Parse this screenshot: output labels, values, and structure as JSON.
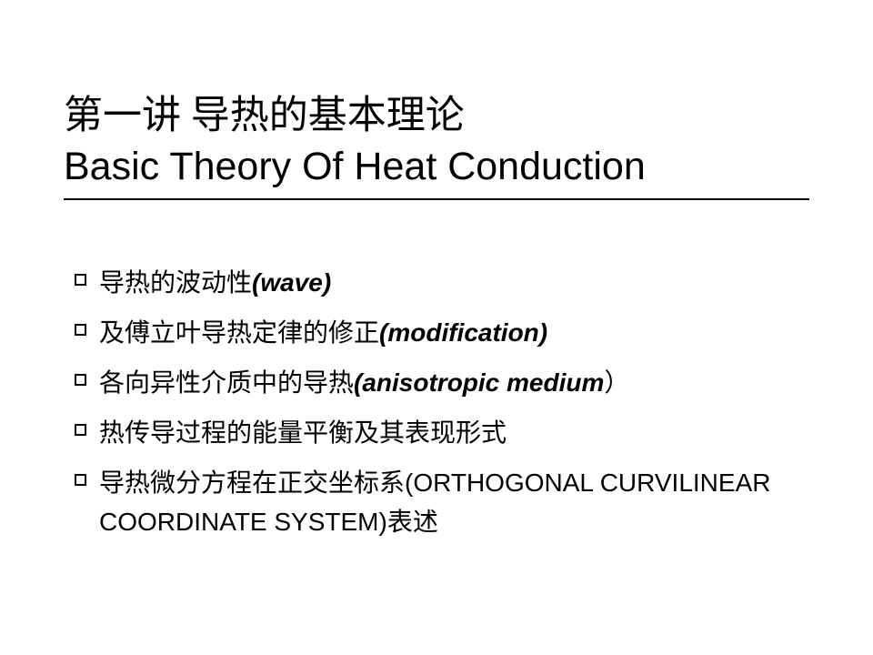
{
  "title": {
    "line1_cn": "第一讲 导热的基本理论",
    "line2_en": "Basic Theory Of Heat Conduction",
    "fontsize": 43,
    "color": "#000000",
    "underline_color": "#000000",
    "underline_width": 2
  },
  "bullets": [
    {
      "cn_prefix": "导热的波动性",
      "en_italic": "(wave)",
      "en_bold": true,
      "cn_suffix": ""
    },
    {
      "cn_prefix": "及傅立叶导热定律的修正",
      "en_italic": "(modification)",
      "en_bold": true,
      "cn_suffix": ""
    },
    {
      "cn_prefix": "各向异性介质中的导热",
      "en_italic": "(anisotropic medium",
      "en_bold": true,
      "cn_suffix": "）"
    },
    {
      "cn_prefix": "热传导过程的能量平衡及其表现形式",
      "en_italic": "",
      "en_bold": false,
      "cn_suffix": ""
    },
    {
      "cn_prefix": "导热微分方程在正交坐标系",
      "en_italic": "(ORTHOGONAL CURVILINEAR COORDINATE SYSTEM)",
      "en_bold": false,
      "cn_suffix": "表述"
    }
  ],
  "styling": {
    "background_color": "#ffffff",
    "text_color": "#000000",
    "bullet_border_color": "#000000",
    "bullet_size": 13,
    "body_fontsize": 28,
    "slide_width": 960,
    "slide_height": 720
  }
}
